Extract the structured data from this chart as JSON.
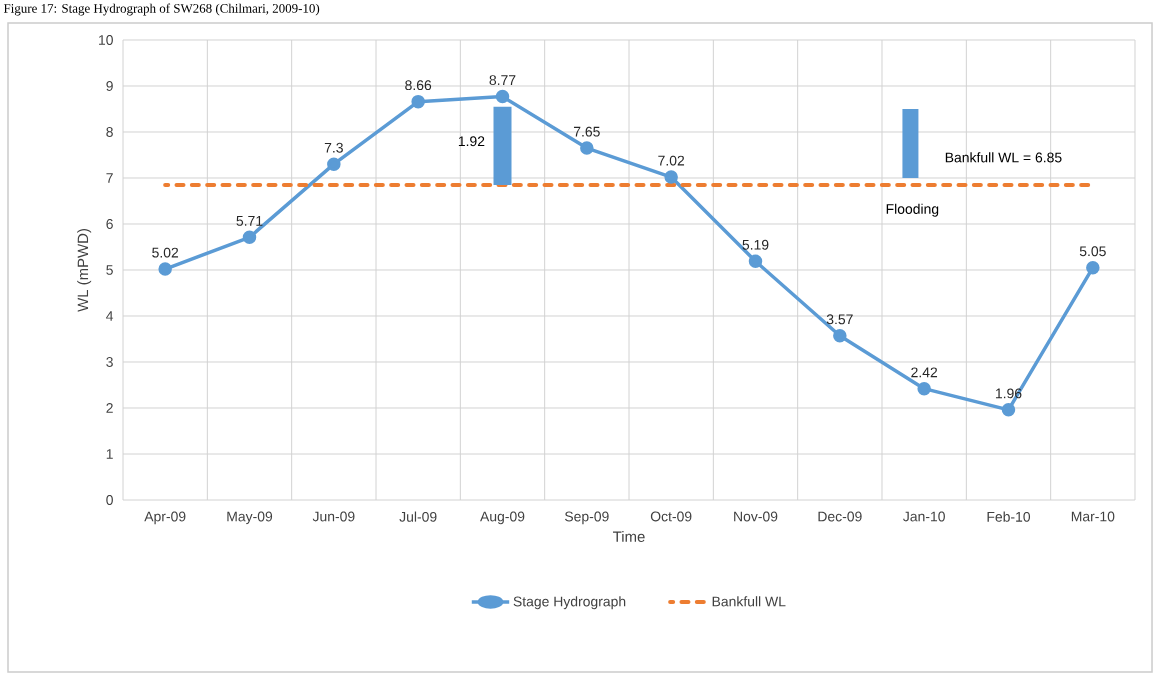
{
  "chart_data": {
    "type": "line",
    "title": "Figure 17: Stage Hydrograph of SW268 (Chilmari, 2009-10)",
    "xlabel": "Time",
    "ylabel": "WL (mPWD)",
    "categories": [
      "Apr-09",
      "May-09",
      "Jun-09",
      "Jul-09",
      "Aug-09",
      "Sep-09",
      "Oct-09",
      "Nov-09",
      "Dec-09",
      "Jan-10",
      "Feb-10",
      "Mar-10"
    ],
    "series": [
      {
        "name": "Stage Hydrograph",
        "color": "#5b9bd5",
        "marker": "circle",
        "line_style": "solid",
        "values": [
          5.02,
          5.71,
          7.3,
          8.66,
          8.77,
          7.65,
          7.02,
          5.19,
          3.57,
          2.42,
          1.96,
          5.05
        ],
        "value_labels": [
          "5.02",
          "5.71",
          "7.3",
          "8.66",
          "8.77",
          "7.65",
          "7.02",
          "5.19",
          "3.57",
          "2.42",
          "1.96",
          "5.05"
        ]
      },
      {
        "name": "Bankfull WL",
        "color": "#ed7d31",
        "marker": "none",
        "line_style": "dashed",
        "values": [
          6.85,
          6.85,
          6.85,
          6.85,
          6.85,
          6.85,
          6.85,
          6.85,
          6.85,
          6.85,
          6.85,
          6.85
        ]
      }
    ],
    "annotations": [
      "1.92",
      "Bankfull WL = 6.85",
      "Flooding"
    ],
    "ylim": [
      0,
      10
    ],
    "yticks": [
      0,
      1,
      2,
      3,
      4,
      5,
      6,
      7,
      8,
      9,
      10
    ],
    "grid": true,
    "legend": "bottom"
  }
}
